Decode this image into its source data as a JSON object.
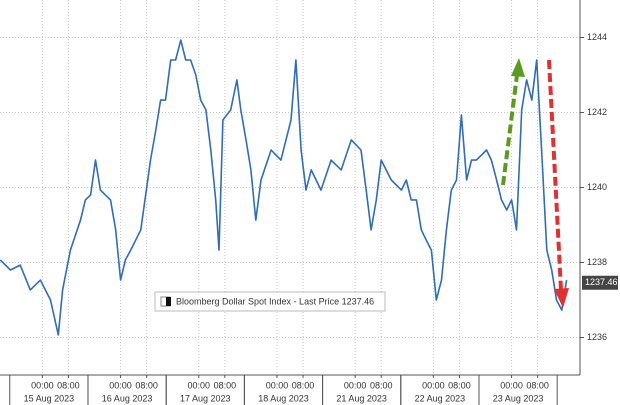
{
  "chart_data": {
    "type": "line",
    "x": [
      -12.9,
      -9.8,
      -6.8,
      -3.7,
      -0.6,
      2.5,
      4.9,
      6.2,
      8.6,
      11.7,
      13.2,
      14.8,
      16.3,
      17.8,
      20.9,
      22.5,
      24,
      25.5,
      27.1,
      30.2,
      33.2,
      34.8,
      36.3,
      37.8,
      39.4,
      40.9,
      42.5,
      44,
      45.5,
      47.1,
      48.6,
      50.2,
      51.7,
      53.2,
      54.2,
      55.4,
      57.8,
      59.7,
      60.9,
      62.5,
      64,
      65.5,
      67.1,
      70.2,
      73.2,
      76.3,
      77.8,
      79.4,
      80.9,
      82.5,
      85.5,
      88.6,
      91.7,
      94.8,
      97.8,
      99.4,
      100.9,
      102.5,
      104,
      105.5,
      107.1,
      110.2,
      111.7,
      113.2,
      114.8,
      116.3,
      117.8,
      119.4,
      120.9,
      122.5,
      124,
      125.5,
      127.1,
      128.6,
      130.2,
      131.7,
      133.2,
      134.8,
      136.3,
      137.8,
      139.4,
      140.9,
      142.5,
      144,
      145.5,
      147.1,
      148.6,
      150.2,
      151.7,
      153.2,
      154.8,
      156.3,
      157.8,
      159.4,
      160.9
    ],
    "series": [
      {
        "name": "Bloomberg Dollar Spot Index - Last Price 1237.46",
        "color": "#2f6db5",
        "values": [
          1238.07,
          1237.8,
          1237.93,
          1237.27,
          1237.53,
          1237,
          1236.07,
          1237.27,
          1238.33,
          1239.13,
          1239.67,
          1239.8,
          1240.73,
          1239.93,
          1239.67,
          1238.87,
          1237.53,
          1238.07,
          1238.33,
          1238.87,
          1240.73,
          1241.53,
          1242.33,
          1242.33,
          1243.4,
          1243.4,
          1243.93,
          1243.4,
          1243.4,
          1243,
          1242.33,
          1242.07,
          1241,
          1239.67,
          1238.33,
          1241.8,
          1242.07,
          1242.87,
          1242.07,
          1241.27,
          1240.47,
          1239.13,
          1240.2,
          1241,
          1240.73,
          1241.8,
          1243.4,
          1241,
          1239.93,
          1240.47,
          1239.93,
          1240.73,
          1240.47,
          1241.27,
          1241,
          1239.93,
          1238.87,
          1239.67,
          1240.73,
          1240.47,
          1240.2,
          1239.93,
          1240.2,
          1239.67,
          1239.67,
          1238.87,
          1238.6,
          1238.33,
          1237,
          1237.53,
          1238.87,
          1239.93,
          1240.2,
          1241.93,
          1240.2,
          1240.73,
          1240.73,
          1240.87,
          1241,
          1240.73,
          1240.2,
          1239.67,
          1239.4,
          1239.67,
          1238.87,
          1242.07,
          1242.87,
          1242.33,
          1243.4,
          1241,
          1238.33,
          1237.8,
          1237,
          1236.73,
          1237.53
        ]
      }
    ],
    "last_price": 1237.46,
    "xlim": [
      -13,
      165
    ],
    "ylim": [
      1235,
      1245
    ],
    "yticks": [
      1236,
      1238,
      1240,
      1242,
      1244
    ],
    "xticks": [
      {
        "value": 0,
        "label": "00:00"
      },
      {
        "value": 8,
        "label": "08:00"
      },
      {
        "value": 24,
        "label": "00:00"
      },
      {
        "value": 32,
        "label": "08:00"
      },
      {
        "value": 48,
        "label": "00:00"
      },
      {
        "value": 56,
        "label": "08:00"
      },
      {
        "value": 72,
        "label": "00:00"
      },
      {
        "value": 80,
        "label": "08:00"
      },
      {
        "value": 96,
        "label": "00:00"
      },
      {
        "value": 104,
        "label": "08:00"
      },
      {
        "value": 120,
        "label": "00:00"
      },
      {
        "value": 128,
        "label": "08:00"
      },
      {
        "value": 144,
        "label": "00:00"
      },
      {
        "value": 152,
        "label": "08:00"
      }
    ],
    "date_labels": [
      {
        "value": 2,
        "label": "15 Aug 2023"
      },
      {
        "value": 26,
        "label": "16 Aug 2023"
      },
      {
        "value": 50,
        "label": "17 Aug 2023"
      },
      {
        "value": 74,
        "label": "18 Aug 2023"
      },
      {
        "value": 98,
        "label": "21 Aug 2023"
      },
      {
        "value": 122,
        "label": "22 Aug 2023"
      },
      {
        "value": 146,
        "label": "23 Aug 2023"
      }
    ],
    "grid": true
  }
}
